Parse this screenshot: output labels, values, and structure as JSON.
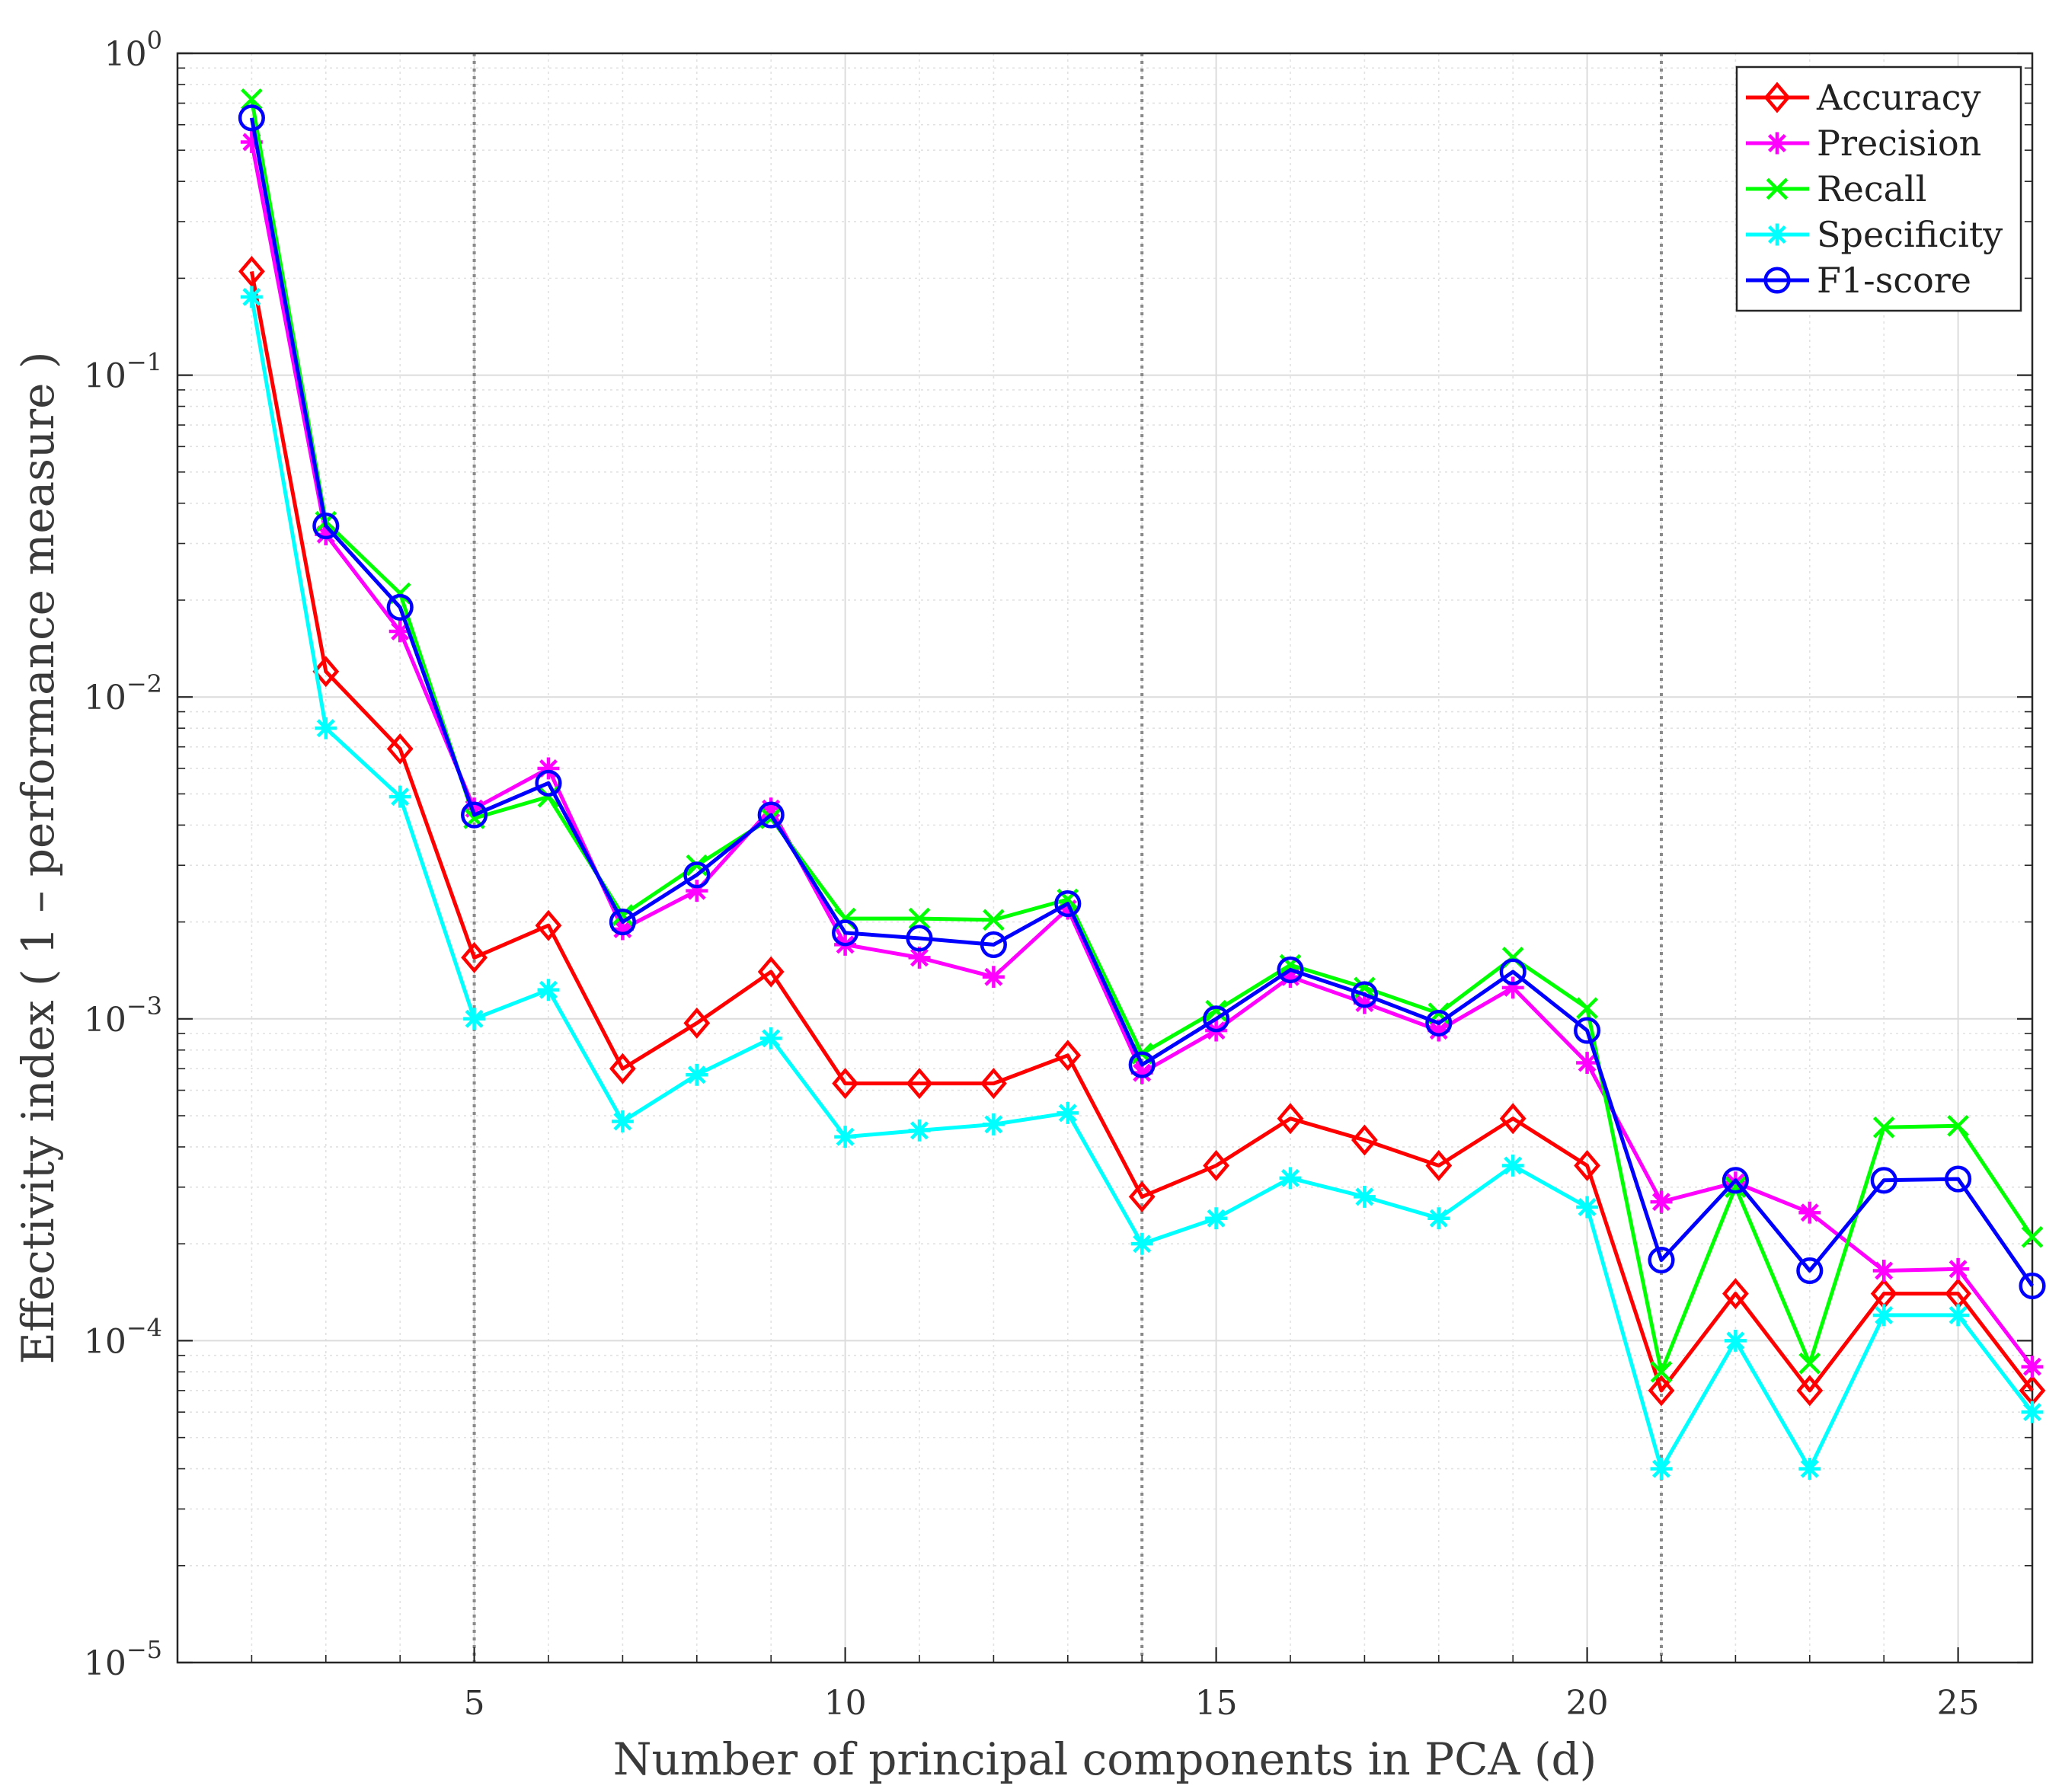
{
  "chart_data": {
    "type": "line",
    "title": "",
    "xlabel": "Number of principal components in PCA (d)",
    "ylabel": "Effectivity index ( 1 – performance measure )",
    "yscale": "log",
    "xlim": [
      1,
      26
    ],
    "ylim": [
      1e-05,
      1
    ],
    "grid": true,
    "legend_position": "top-right",
    "x_ticks": [
      5,
      10,
      15,
      20,
      25
    ],
    "y_ticks": [
      {
        "value": 1,
        "base": "10",
        "exp": "0"
      },
      {
        "value": 0.1,
        "base": "10",
        "exp": "−1"
      },
      {
        "value": 0.01,
        "base": "10",
        "exp": "−2"
      },
      {
        "value": 0.001,
        "base": "10",
        "exp": "−3"
      },
      {
        "value": 0.0001,
        "base": "10",
        "exp": "−4"
      },
      {
        "value": 1e-05,
        "base": "10",
        "exp": "−5"
      }
    ],
    "reference_lines_x": [
      5,
      14,
      21
    ],
    "x": [
      2,
      3,
      4,
      5,
      6,
      7,
      8,
      9,
      10,
      11,
      12,
      13,
      14,
      15,
      16,
      17,
      18,
      19,
      20,
      21,
      22,
      23,
      24,
      25,
      26
    ],
    "series": [
      {
        "name": "Accuracy",
        "color": "#ff0000",
        "marker": "diamond",
        "values": [
          0.21,
          0.012,
          0.0069,
          0.00155,
          0.00195,
          0.0007,
          0.00097,
          0.0014,
          0.00063,
          0.00063,
          0.00063,
          0.00077,
          0.00028,
          0.00035,
          0.00049,
          0.00042,
          0.00035,
          0.00049,
          0.00035,
          7e-05,
          0.00014,
          7e-05,
          0.00014,
          0.00014,
          7e-05
        ]
      },
      {
        "name": "Precision",
        "color": "#ff00ff",
        "marker": "asterisk",
        "values": [
          0.53,
          0.032,
          0.016,
          0.0045,
          0.006,
          0.0019,
          0.0025,
          0.0045,
          0.0017,
          0.00155,
          0.00135,
          0.0022,
          0.00068,
          0.00092,
          0.00135,
          0.00112,
          0.00092,
          0.00125,
          0.00073,
          0.00027,
          0.00031,
          0.00025,
          0.000165,
          0.000167,
          8.3e-05
        ]
      },
      {
        "name": "Recall",
        "color": "#00ff00",
        "marker": "cross",
        "values": [
          0.72,
          0.035,
          0.021,
          0.0042,
          0.0049,
          0.0021,
          0.003,
          0.0042,
          0.00205,
          0.00205,
          0.00203,
          0.00235,
          0.00078,
          0.00106,
          0.00147,
          0.00125,
          0.00104,
          0.00155,
          0.00108,
          8e-05,
          0.0003,
          8.5e-05,
          0.00046,
          0.000465,
          0.00021
        ]
      },
      {
        "name": "Specificity",
        "color": "#00ffff",
        "marker": "asterisk",
        "values": [
          0.175,
          0.008,
          0.0049,
          0.001,
          0.00123,
          0.00048,
          0.00067,
          0.00087,
          0.00043,
          0.00045,
          0.00047,
          0.00051,
          0.0002,
          0.00024,
          0.00032,
          0.00028,
          0.00024,
          0.00035,
          0.00026,
          4e-05,
          0.0001,
          4e-05,
          0.00012,
          0.00012,
          6e-05
        ]
      },
      {
        "name": "F1-score",
        "color": "#0000ff",
        "marker": "circle",
        "values": [
          0.63,
          0.034,
          0.019,
          0.0043,
          0.0054,
          0.002,
          0.0028,
          0.0043,
          0.00185,
          0.00178,
          0.0017,
          0.00228,
          0.00072,
          0.001,
          0.00142,
          0.00119,
          0.00097,
          0.0014,
          0.00092,
          0.000178,
          0.000315,
          0.000165,
          0.000315,
          0.000318,
          0.000148
        ]
      }
    ]
  }
}
